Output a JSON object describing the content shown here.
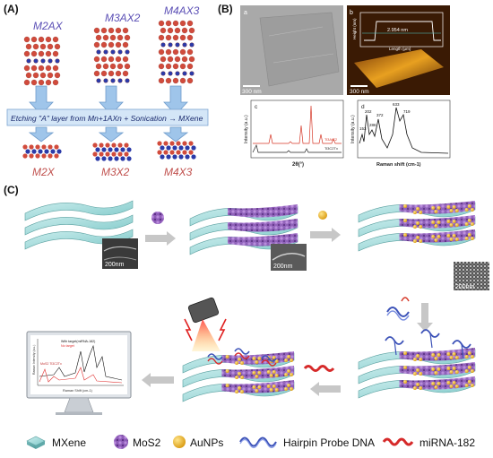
{
  "panel_a": {
    "label": "(A)",
    "phases_top": [
      "M2AX",
      "M3AX2",
      "M4AX3"
    ],
    "etching_text": "Etching \"A\" layer from Mn+1AXn + Sonication → MXene",
    "phases_bottom": [
      "M2X",
      "M3X2",
      "M4X3"
    ]
  },
  "panel_b": {
    "label": "(B)",
    "sub_a": {
      "letter": "a",
      "scale_bar": "300 nm"
    },
    "sub_b": {
      "letter": "b",
      "scale_bar": "300 nm",
      "y_label": "Height (nm)",
      "x_label": "Length (μm)",
      "thickness": "2.954 nm"
    },
    "sub_c": {
      "letter": "c",
      "y_label": "Intensity (a.u.)",
      "x_label": "2θ(°)",
      "series": [
        "Ti3AlC2",
        "Ti3C2Tx"
      ]
    },
    "sub_d": {
      "letter": "d",
      "y_label": "Intensity (a.u.)",
      "x_label": "Raman shift (cm-1)",
      "peaks": [
        "153",
        "202",
        "286",
        "372",
        "633",
        "719"
      ]
    }
  },
  "panel_c": {
    "label": "(C)",
    "scale_bars": [
      "200nm",
      "200nm",
      "200nm"
    ],
    "monitor": {
      "y_label": "Raman Intensity (a.u.)",
      "x_label": "Raman Shift (cm-1)",
      "legend": [
        "With target(miRNA-182)",
        "No target"
      ],
      "tag": "MoS2 Ti3C2Tx"
    }
  },
  "legend": {
    "mxene": "MXene",
    "mos2": "MoS2",
    "aunps": "AuNPs",
    "probe": "Hairpin Probe DNA",
    "mirna": "miRNA-182"
  }
}
